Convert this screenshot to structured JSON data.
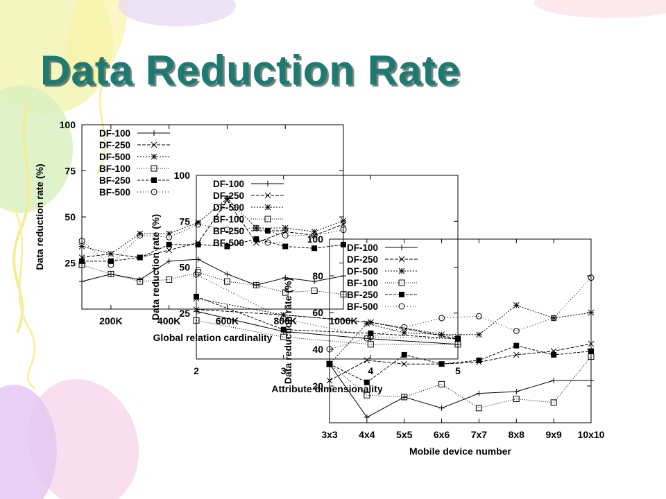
{
  "slide": {
    "title": "Data Reduction Rate",
    "title_color": "#1c7a70"
  },
  "chart_data": [
    {
      "type": "line",
      "xlabel": "Global relation cardinality",
      "ylabel": "Data reduction rate (%)",
      "x": [
        100000,
        200000,
        300000,
        400000,
        500000,
        600000,
        700000,
        800000,
        900000,
        1000000
      ],
      "xlim": [
        100000,
        1000000
      ],
      "xticks": [
        {
          "value": 200000,
          "label": "200K"
        },
        {
          "value": 400000,
          "label": "400K"
        },
        {
          "value": 600000,
          "label": "600K"
        },
        {
          "value": 800000,
          "label": "800K"
        },
        {
          "value": 1000000,
          "label": "1000K"
        }
      ],
      "ylim": [
        0,
        100
      ],
      "yticks": [
        25,
        50,
        75,
        100
      ],
      "grid": false,
      "legend": "top-left",
      "series": [
        {
          "name": "DF-100",
          "marker": "plus-icon",
          "values": [
            15,
            19,
            16,
            26,
            27,
            19,
            13,
            17,
            15,
            18
          ]
        },
        {
          "name": "DF-250",
          "marker": "cross-icon",
          "values": [
            28,
            30,
            28,
            32,
            36,
            59,
            36,
            42,
            40,
            46
          ]
        },
        {
          "name": "DF-500",
          "marker": "asterisk-icon",
          "values": [
            34,
            30,
            41,
            41,
            47,
            60,
            44,
            44,
            42,
            48
          ]
        },
        {
          "name": "BF-100",
          "marker": "open-square-icon",
          "values": [
            24,
            19,
            15,
            16,
            20,
            15,
            13,
            9,
            10,
            8
          ]
        },
        {
          "name": "BF-250",
          "marker": "filled-square-icon",
          "values": [
            26,
            26,
            28,
            35,
            35,
            34,
            38,
            34,
            33,
            35
          ]
        },
        {
          "name": "BF-500",
          "marker": "open-circle-icon",
          "values": [
            37,
            24,
            40,
            39,
            46,
            43,
            44,
            40,
            40,
            43
          ]
        }
      ]
    },
    {
      "type": "line",
      "xlabel": "Attribute dimensionality",
      "ylabel": "Data reduction rate (%)",
      "x": [
        2,
        3,
        4,
        5
      ],
      "xlim": [
        2,
        5
      ],
      "xticks": [
        {
          "value": 2,
          "label": "2"
        },
        {
          "value": 3,
          "label": "3"
        },
        {
          "value": 4,
          "label": "4"
        },
        {
          "value": 5,
          "label": "5"
        }
      ],
      "ylim": [
        0,
        100
      ],
      "yticks": [
        25,
        50,
        75,
        100
      ],
      "grid": false,
      "legend": "top-left",
      "series": [
        {
          "name": "DF-100",
          "marker": "plus-icon",
          "values": [
            26,
            15,
            11,
            8
          ]
        },
        {
          "name": "DF-250",
          "marker": "cross-icon",
          "values": [
            27,
            24,
            20,
            11
          ]
        },
        {
          "name": "DF-500",
          "marker": "asterisk-icon",
          "values": [
            33,
            24,
            20,
            12
          ]
        },
        {
          "name": "BF-100",
          "marker": "open-square-icon",
          "values": [
            21,
            12,
            8,
            8
          ]
        },
        {
          "name": "BF-250",
          "marker": "filled-square-icon",
          "values": [
            34,
            16,
            14,
            11
          ]
        },
        {
          "name": "BF-500",
          "marker": "open-circle-icon",
          "values": [
            46,
            22,
            12,
            11
          ]
        }
      ]
    },
    {
      "type": "line",
      "xlabel": "Mobile device number",
      "ylabel": "Data reduction rate (%)",
      "categories": [
        "3x3",
        "4x4",
        "5x5",
        "6x6",
        "7x7",
        "8x8",
        "9x9",
        "10x10"
      ],
      "ylim": [
        0,
        100
      ],
      "yticks": [
        20,
        40,
        60,
        80,
        100
      ],
      "grid": false,
      "legend": "top-left",
      "series": [
        {
          "name": "DF-100",
          "marker": "plus-icon",
          "values": [
            32,
            3,
            14,
            8,
            16,
            17,
            23,
            23
          ]
        },
        {
          "name": "DF-250",
          "marker": "cross-icon",
          "values": [
            23,
            34,
            32,
            32,
            33,
            37,
            39,
            43
          ]
        },
        {
          "name": "DF-500",
          "marker": "asterisk-icon",
          "values": [
            32,
            54,
            49,
            48,
            48,
            64,
            57,
            60
          ]
        },
        {
          "name": "BF-100",
          "marker": "open-square-icon",
          "values": [
            32,
            15,
            14,
            21,
            8,
            13,
            11,
            36
          ]
        },
        {
          "name": "BF-250",
          "marker": "filled-square-icon",
          "values": [
            32,
            22,
            37,
            32,
            34,
            42,
            37,
            39
          ]
        },
        {
          "name": "BF-500",
          "marker": "open-circle-icon",
          "values": [
            40,
            46,
            52,
            57,
            58,
            50,
            57,
            79
          ]
        }
      ]
    }
  ]
}
